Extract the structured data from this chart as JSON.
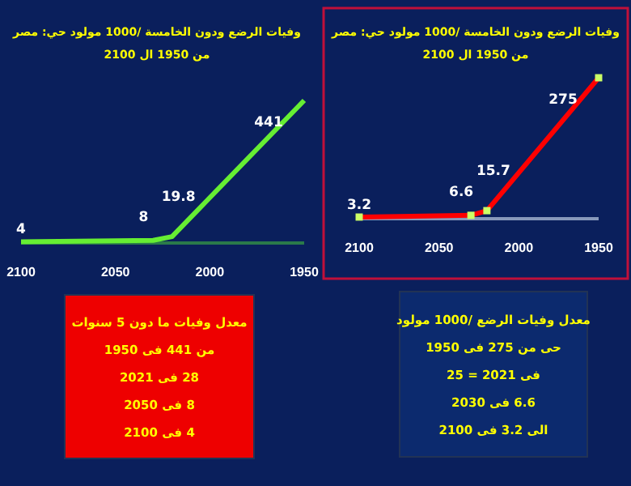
{
  "chart_data": [
    {
      "type": "line",
      "title": "وفيات الرضع ودون الخامسة /1000 مولود حي: مصر من 1950 ال 2100",
      "x": [
        2100,
        2030,
        2020,
        1950
      ],
      "values": [
        4,
        8,
        19.8,
        441
      ],
      "color": "#66ee33",
      "xlim": [
        2100,
        1950
      ],
      "xticks": [
        2100,
        2050,
        2000,
        1950
      ],
      "data_labels": true
    },
    {
      "type": "line",
      "title": "وفيات الرضع ودون الخامسة /1000 مولود حي: مصر من 1950 ال 2100",
      "x": [
        2100,
        2030,
        2020,
        1950
      ],
      "values": [
        3.2,
        6.6,
        15.7,
        275
      ],
      "color": "#ff0000",
      "marker": "square",
      "xlim": [
        2100,
        1950
      ],
      "xticks": [
        2100,
        2050,
        2000,
        1950
      ],
      "data_labels": true
    },
    {
      "type": "other",
      "annotations": [
        "معدل وفيات ما دون 5 سنوات",
        "من 441 فى 1950",
        "28 فى 2021",
        "8 فى 2050",
        "4 فى 2100"
      ],
      "color": "#ee0000"
    },
    {
      "type": "other",
      "annotations": [
        "معدل وفيات الرضع /1000 مولود",
        "حى من 275 فى 1950",
        "فى 2021 = 25",
        "6.6 فى 2030",
        "الى 3.2 فى 2100"
      ],
      "color": "#0c2a6e"
    }
  ]
}
